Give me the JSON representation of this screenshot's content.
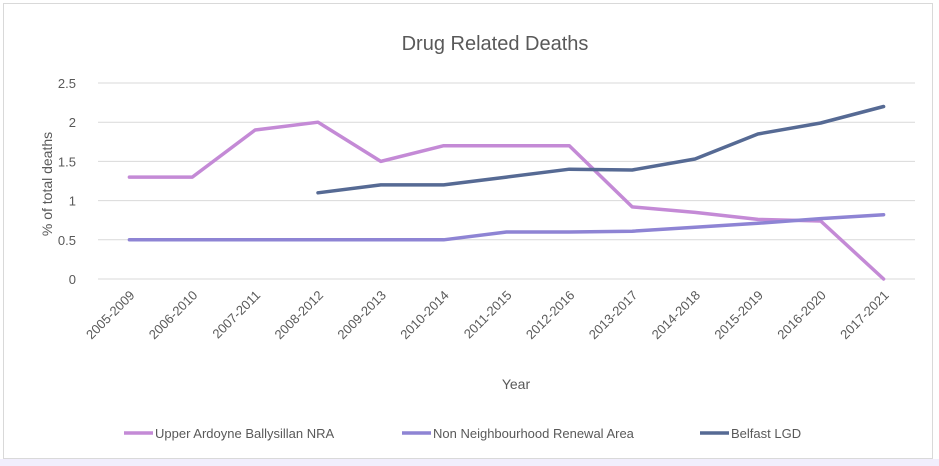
{
  "chart_data": {
    "type": "line",
    "title": "Drug Related Deaths",
    "xlabel": "Year",
    "ylabel": "% of total deaths",
    "categories": [
      "2005-2009",
      "2006-2010",
      "2007-2011",
      "2008-2012",
      "2009-2013",
      "2010-2014",
      "2011-2015",
      "2012-2016",
      "2013-2017",
      "2014-2018",
      "2015-2019",
      "2016-2020",
      "2017-2021"
    ],
    "ylim": [
      0,
      2.5
    ],
    "yticks": [
      "0",
      "0.5",
      "1",
      "1.5",
      "2",
      "2.5"
    ],
    "grid": true,
    "legend_position": "bottom",
    "series": [
      {
        "name": "Upper Ardoyne Ballysillan NRA",
        "color": "#c48ad6",
        "values": [
          1.3,
          1.3,
          1.9,
          2.0,
          1.5,
          1.7,
          1.7,
          1.7,
          0.92,
          0.85,
          0.76,
          0.74,
          0.0
        ]
      },
      {
        "name": "Non Neighbourhood Renewal Area",
        "color": "#8e84d4",
        "values": [
          0.5,
          0.5,
          0.5,
          0.5,
          0.5,
          0.5,
          0.6,
          0.6,
          0.61,
          0.66,
          0.71,
          0.77,
          0.82
        ]
      },
      {
        "name": "Belfast LGD",
        "color": "#566a94",
        "values": [
          null,
          null,
          null,
          1.1,
          1.2,
          1.2,
          1.3,
          1.4,
          1.39,
          1.53,
          1.85,
          1.99,
          2.2
        ]
      }
    ]
  }
}
